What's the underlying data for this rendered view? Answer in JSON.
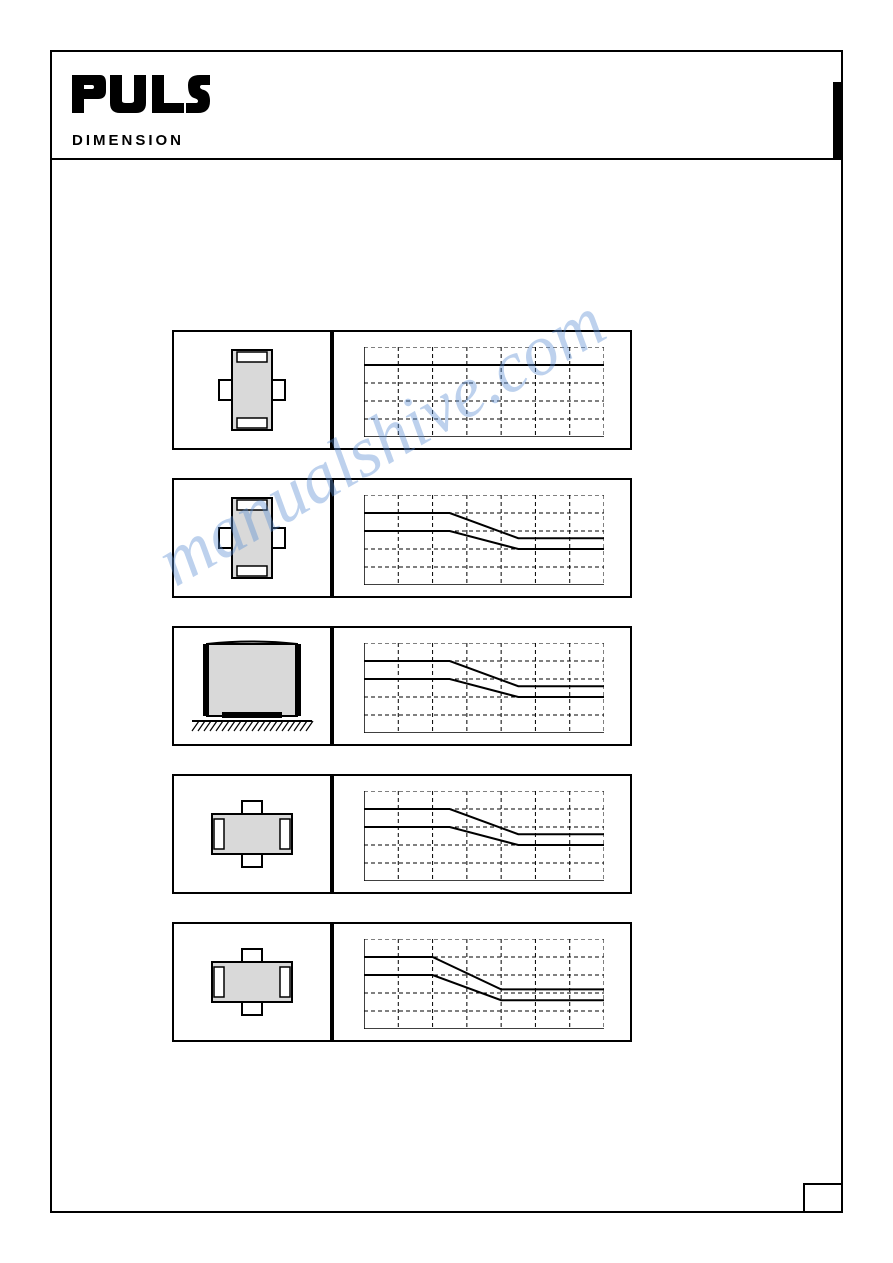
{
  "brand": "PULS",
  "subtitle": "DIMENSION",
  "watermark": "manualshive.com",
  "page_number": "",
  "charts": [
    {
      "id": 1,
      "icon_type": "standard",
      "curves": {
        "k1": [
          [
            0,
            100
          ],
          [
            20,
            100
          ],
          [
            30,
            100
          ],
          [
            40,
            100
          ],
          [
            50,
            100
          ],
          [
            60,
            100
          ],
          [
            70,
            100
          ]
        ],
        "k2": []
      }
    },
    {
      "id": 2,
      "icon_type": "standard",
      "curves": {
        "k1": [
          [
            0,
            100
          ],
          [
            25,
            100
          ],
          [
            45,
            65
          ],
          [
            70,
            65
          ]
        ],
        "k2": [
          [
            0,
            75
          ],
          [
            25,
            75
          ],
          [
            45,
            50
          ],
          [
            70,
            50
          ]
        ]
      }
    },
    {
      "id": 3,
      "icon_type": "table",
      "curves": {
        "k1": [
          [
            0,
            100
          ],
          [
            25,
            100
          ],
          [
            45,
            65
          ],
          [
            70,
            65
          ]
        ],
        "k2": [
          [
            0,
            75
          ],
          [
            25,
            75
          ],
          [
            45,
            50
          ],
          [
            70,
            50
          ]
        ]
      }
    },
    {
      "id": 4,
      "icon_type": "horizontal",
      "curves": {
        "k1": [
          [
            0,
            100
          ],
          [
            25,
            100
          ],
          [
            45,
            65
          ],
          [
            70,
            65
          ]
        ],
        "k2": [
          [
            0,
            75
          ],
          [
            25,
            75
          ],
          [
            45,
            50
          ],
          [
            70,
            50
          ]
        ]
      }
    },
    {
      "id": 5,
      "icon_type": "horizontal",
      "curves": {
        "k1": [
          [
            0,
            100
          ],
          [
            20,
            100
          ],
          [
            40,
            55
          ],
          [
            70,
            55
          ]
        ],
        "k2": [
          [
            0,
            75
          ],
          [
            20,
            75
          ],
          [
            40,
            40
          ],
          [
            70,
            40
          ]
        ]
      }
    }
  ],
  "chart_style": {
    "xlim": [
      0,
      70
    ],
    "ylim": [
      0,
      125
    ],
    "xtick_step": 10,
    "ytick_step": 25,
    "grid_color": "#000",
    "line_color": "#000",
    "line_width": 2,
    "dash_pattern": "4,3",
    "background": "#fff"
  },
  "icon_style": {
    "body_fill": "#d9d9d9",
    "body_stroke": "#000",
    "terminal_fill": "#fff",
    "rail_fill": "#fff"
  }
}
